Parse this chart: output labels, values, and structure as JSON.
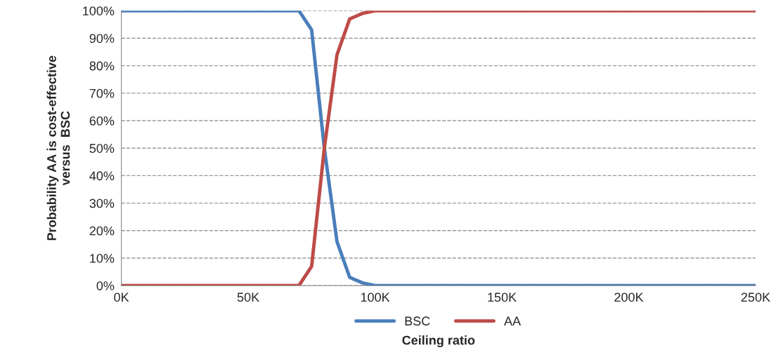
{
  "chart_data": {
    "type": "line",
    "xlabel": "Ceiling ratio",
    "ylabel": "Probability AA is cost-effective\nversus  BSC",
    "x": [
      0,
      70,
      75,
      80,
      85,
      90,
      95,
      100,
      250
    ],
    "series": [
      {
        "name": "BSC",
        "color": "#4a7ebb",
        "values": [
          100,
          100,
          93,
          50,
          16,
          3,
          1,
          0,
          0
        ]
      },
      {
        "name": "AA",
        "color": "#be4b48",
        "values": [
          0,
          0,
          7,
          50,
          84,
          97,
          99,
          100,
          100
        ]
      }
    ],
    "xlim": [
      0,
      250
    ],
    "xticks": [
      {
        "value": 0,
        "label": "0K"
      },
      {
        "value": 50,
        "label": "50K"
      },
      {
        "value": 100,
        "label": "100K"
      },
      {
        "value": 150,
        "label": "150K"
      },
      {
        "value": 200,
        "label": "200K"
      },
      {
        "value": 250,
        "label": "250K"
      }
    ],
    "ylim": [
      0,
      100
    ],
    "yticks": [
      {
        "value": 0,
        "label": "0%"
      },
      {
        "value": 10,
        "label": "10%"
      },
      {
        "value": 20,
        "label": "20%"
      },
      {
        "value": 30,
        "label": "30%"
      },
      {
        "value": 40,
        "label": "40%"
      },
      {
        "value": 50,
        "label": "50%"
      },
      {
        "value": 60,
        "label": "60%"
      },
      {
        "value": 70,
        "label": "70%"
      },
      {
        "value": 80,
        "label": "80%"
      },
      {
        "value": 90,
        "label": "90%"
      },
      {
        "value": 100,
        "label": "100%"
      }
    ],
    "grid": "y",
    "legend": "bottom",
    "marker": "none",
    "line_style": "solid"
  }
}
